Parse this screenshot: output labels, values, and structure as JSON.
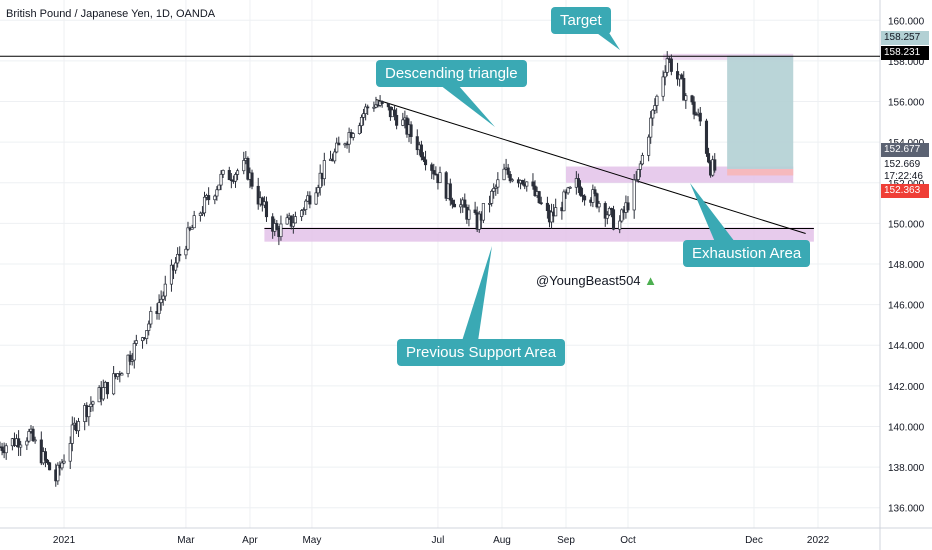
{
  "symbol_title": "British Pound / Japanese Yen, 1D, OANDA",
  "watermark": "@YoungBeast504",
  "colors": {
    "up_candle": "#ffffff",
    "candle_stroke": "#2a2e39",
    "down_candle": "#2a2e39",
    "zone": "#e1bee7",
    "callout": "#3aa9b4",
    "target_box": "#b2d0d4",
    "stop_box": "#f7b7b8",
    "last_price_bg": "#ef3e36",
    "resistance_line_label_bg": "#000000",
    "current_label_bg": "#5b6272",
    "target_label_bg": "#b2d0d4"
  },
  "annotations": {
    "target": "Target",
    "descending_triangle": "Descending triangle",
    "exhaustion_area": "Exhaustion Area",
    "previous_support_area": "Previous Support Area"
  },
  "price_labels": {
    "target": "158.257",
    "resistance_line": "158.231",
    "entry": "152.677",
    "entry_plain": "152.669",
    "countdown": "17:22:46",
    "last_price": "152.363"
  },
  "chart_data": {
    "type": "candlestick",
    "title": "British Pound / Japanese Yen, 1D, OANDA",
    "y_axis": {
      "range": [
        135,
        161
      ],
      "ticks": [
        136,
        138,
        140,
        142,
        144,
        146,
        148,
        150,
        152,
        154,
        156,
        158,
        160
      ],
      "tick_labels": [
        "136.000",
        "138.000",
        "140.000",
        "142.000",
        "144.000",
        "146.000",
        "148.000",
        "150.000",
        "152.000",
        "154.000",
        "156.000",
        "158.000",
        "160.000"
      ]
    },
    "x_axis": {
      "range": [
        "2020-12-01",
        "2022-01-31"
      ],
      "tick_labels": [
        "2021",
        "Mar",
        "Apr",
        "May",
        "Jul",
        "Aug",
        "Sep",
        "Oct",
        "Dec",
        "2022"
      ],
      "tick_dates": [
        "2021-01-01",
        "2021-03-01",
        "2021-04-01",
        "2021-05-01",
        "2021-07-01",
        "2021-08-01",
        "2021-09-01",
        "2021-10-01",
        "2021-12-01",
        "2022-01-01"
      ]
    },
    "grid": true,
    "candles_anchor_closes": [
      [
        "2020-12-01",
        139.0
      ],
      [
        "2020-12-15",
        139.6
      ],
      [
        "2020-12-28",
        137.4
      ],
      [
        "2021-01-08",
        140.5
      ],
      [
        "2021-01-25",
        142.3
      ],
      [
        "2021-02-08",
        144.5
      ],
      [
        "2021-02-18",
        146.5
      ],
      [
        "2021-02-26",
        148.5
      ],
      [
        "2021-03-08",
        150.6
      ],
      [
        "2021-03-18",
        152.2
      ],
      [
        "2021-03-30",
        152.8
      ],
      [
        "2021-04-06",
        151.0
      ],
      [
        "2021-04-14",
        149.6
      ],
      [
        "2021-04-24",
        150.3
      ],
      [
        "2021-05-06",
        152.5
      ],
      [
        "2021-05-20",
        154.6
      ],
      [
        "2021-05-30",
        156.0
      ],
      [
        "2021-06-12",
        155.2
      ],
      [
        "2021-06-24",
        153.5
      ],
      [
        "2021-07-06",
        151.5
      ],
      [
        "2021-07-20",
        150.0
      ],
      [
        "2021-08-02",
        152.5
      ],
      [
        "2021-08-12",
        152.2
      ],
      [
        "2021-08-24",
        150.2
      ],
      [
        "2021-09-06",
        151.9
      ],
      [
        "2021-09-18",
        151.0
      ],
      [
        "2021-09-26",
        149.8
      ],
      [
        "2021-10-05",
        152.0
      ],
      [
        "2021-10-12",
        155.0
      ],
      [
        "2021-10-20",
        158.2
      ],
      [
        "2021-10-28",
        156.5
      ],
      [
        "2021-11-05",
        155.0
      ],
      [
        "2021-11-10",
        152.8
      ],
      [
        "2021-11-15",
        152.4
      ]
    ],
    "drawings": {
      "resistance_line": 158.231,
      "support_line": 149.75,
      "support_zone": [
        149.1,
        149.8
      ],
      "exhaustion_zone": [
        152.0,
        152.8
      ],
      "trendline": {
        "from": [
          "2021-06-01",
          156.1
        ],
        "to": [
          "2021-12-26",
          149.5
        ]
      },
      "target_box": {
        "from_date": "2021-11-18",
        "to_date": "2021-12-20",
        "range": [
          152.68,
          158.257
        ]
      },
      "stop_box": {
        "range": [
          152.36,
          152.677
        ]
      }
    }
  }
}
